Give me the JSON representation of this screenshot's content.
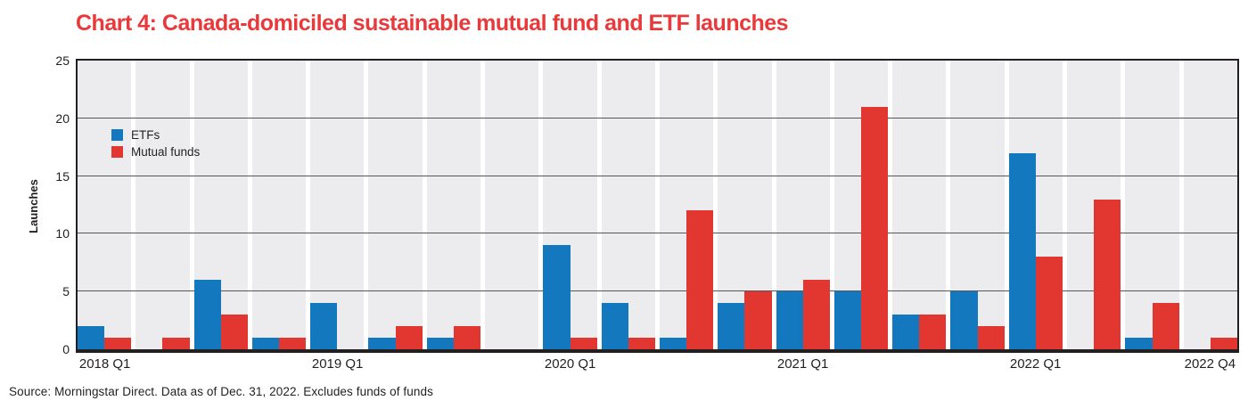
{
  "title": "Chart 4: Canada-domiciled sustainable mutual fund and ETF launches",
  "source_note": "Source: Morningstar Direct. Data as of Dec. 31, 2022. Excludes funds of funds",
  "colors": {
    "title": "#e8393b",
    "etf_blue": "#1478be",
    "mutual_fund_red": "#e23631",
    "plot_background": "#ececee",
    "gridline": "#55565a",
    "axis_border": "#231f20"
  },
  "chart_data": {
    "type": "bar",
    "title": "Chart 4: Canada-domiciled sustainable mutual fund and ETF launches",
    "xlabel": "",
    "ylabel": "Launches",
    "ylim": [
      0,
      25
    ],
    "yticks": [
      0,
      5,
      10,
      15,
      20,
      25
    ],
    "grid": "horizontal",
    "legend_position": "upper-left-inside",
    "categories": [
      "2018 Q1",
      "2018 Q2",
      "2018 Q3",
      "2018 Q4",
      "2019 Q1",
      "2019 Q2",
      "2019 Q3",
      "2019 Q4",
      "2020 Q1",
      "2020 Q2",
      "2020 Q3",
      "2020 Q4",
      "2021 Q1",
      "2021 Q2",
      "2021 Q3",
      "2021 Q4",
      "2022 Q1",
      "2022 Q2",
      "2022 Q3",
      "2022 Q4"
    ],
    "x_tick_labels": [
      {
        "index": 0,
        "label": "2018 Q1"
      },
      {
        "index": 4,
        "label": "2019 Q1"
      },
      {
        "index": 8,
        "label": "2020 Q1"
      },
      {
        "index": 12,
        "label": "2021 Q1"
      },
      {
        "index": 16,
        "label": "2022 Q1"
      },
      {
        "index": 19,
        "label": "2022 Q4"
      }
    ],
    "series": [
      {
        "name": "ETFs",
        "color": "#1478be",
        "values": [
          2,
          0,
          6,
          1,
          4,
          1,
          1,
          0,
          9,
          4,
          1,
          4,
          5,
          5,
          3,
          5,
          17,
          0,
          1,
          0
        ]
      },
      {
        "name": "Mutual funds",
        "color": "#e23631",
        "values": [
          1,
          1,
          3,
          1,
          0,
          2,
          2,
          0,
          1,
          1,
          12,
          5,
          6,
          21,
          3,
          2,
          8,
          13,
          4,
          1
        ]
      }
    ]
  }
}
